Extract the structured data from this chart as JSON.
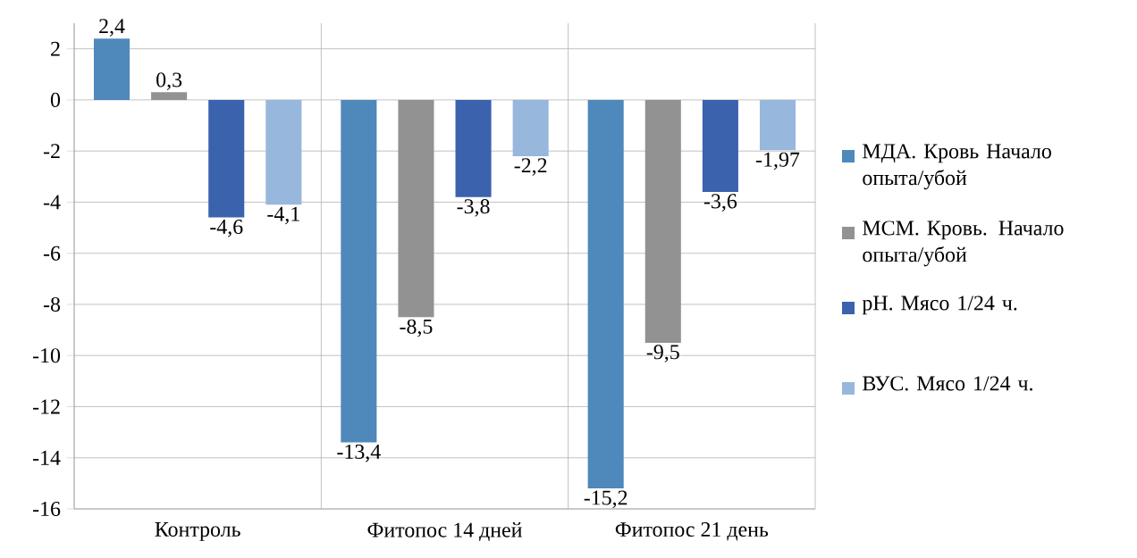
{
  "chart_data": {
    "type": "bar",
    "categories": [
      "Контроль",
      "Фитопос 14 дней",
      "Фитопос 21 день"
    ],
    "series": [
      {
        "name": "МДА. Кровь Начало опыта/убой",
        "color": "#4f88bb",
        "values": [
          2.4,
          -13.4,
          -15.2
        ],
        "value_labels": [
          "2,4",
          "-13,4",
          "-15,2"
        ]
      },
      {
        "name": "МСМ. Кровь. Начало опыта/убой",
        "color": "#929292",
        "values": [
          0.3,
          -8.5,
          -9.5
        ],
        "value_labels": [
          "0,3",
          "-8,5",
          "-9,5"
        ]
      },
      {
        "name": "pH. Мясо 1/24 ч.",
        "color": "#3b62ad",
        "values": [
          -4.6,
          -3.8,
          -3.6
        ],
        "value_labels": [
          "-4,6",
          "-3,8",
          "-3,6"
        ]
      },
      {
        "name": "ВУС. Мясо 1/24 ч.",
        "color": "#97b7dd",
        "values": [
          -4.1,
          -2.2,
          -1.97
        ],
        "value_labels": [
          "-4,1",
          "-2,2",
          "-1,97"
        ]
      }
    ],
    "ylim": [
      -16,
      3
    ],
    "yticks": [
      -16,
      -14,
      -12,
      -10,
      -8,
      -6,
      -4,
      -2,
      0,
      2
    ],
    "grid": true,
    "legend": "right"
  }
}
